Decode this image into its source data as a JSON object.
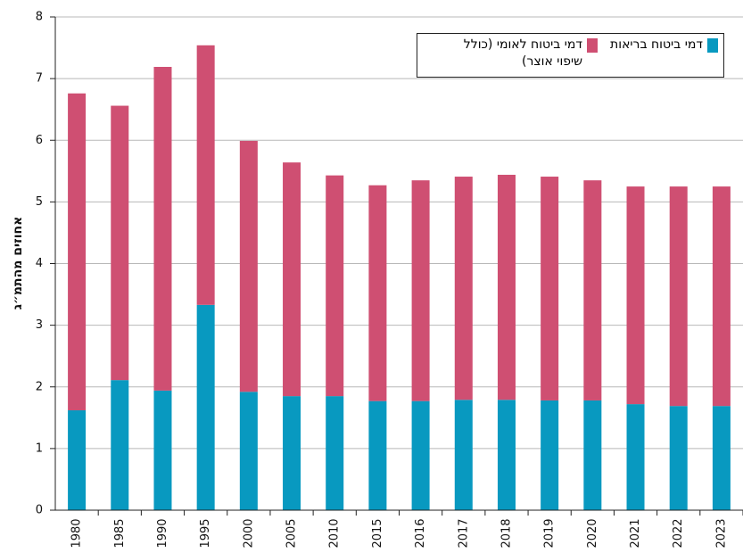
{
  "chart_data": {
    "type": "stacked_bar",
    "y_label": "אחוזים מהתמ״ג",
    "categories": [
      "1980",
      "1985",
      "1990",
      "1995",
      "2000",
      "2005",
      "2010",
      "2015",
      "2016",
      "2017",
      "2018",
      "2019",
      "2020",
      "2021",
      "2022",
      "2023"
    ],
    "series": [
      {
        "name": "דמי ביטוח בריאות",
        "color": "#0899c0",
        "values": [
          1.62,
          2.11,
          1.94,
          3.33,
          1.92,
          1.85,
          1.85,
          1.77,
          1.77,
          1.79,
          1.79,
          1.78,
          1.78,
          1.72,
          1.69,
          1.69
        ]
      },
      {
        "name": "דמי ביטוח לאומי (כולל שיפוי אוצר)",
        "color": "#cf4f72",
        "values": [
          5.14,
          4.45,
          5.25,
          4.21,
          4.07,
          3.79,
          3.58,
          3.5,
          3.58,
          3.62,
          3.65,
          3.63,
          3.57,
          3.53,
          3.56,
          3.56
        ]
      }
    ],
    "ylim": [
      0,
      8
    ],
    "yticks": [
      0,
      1,
      2,
      3,
      4,
      5,
      6,
      7,
      8
    ],
    "grid": true
  }
}
